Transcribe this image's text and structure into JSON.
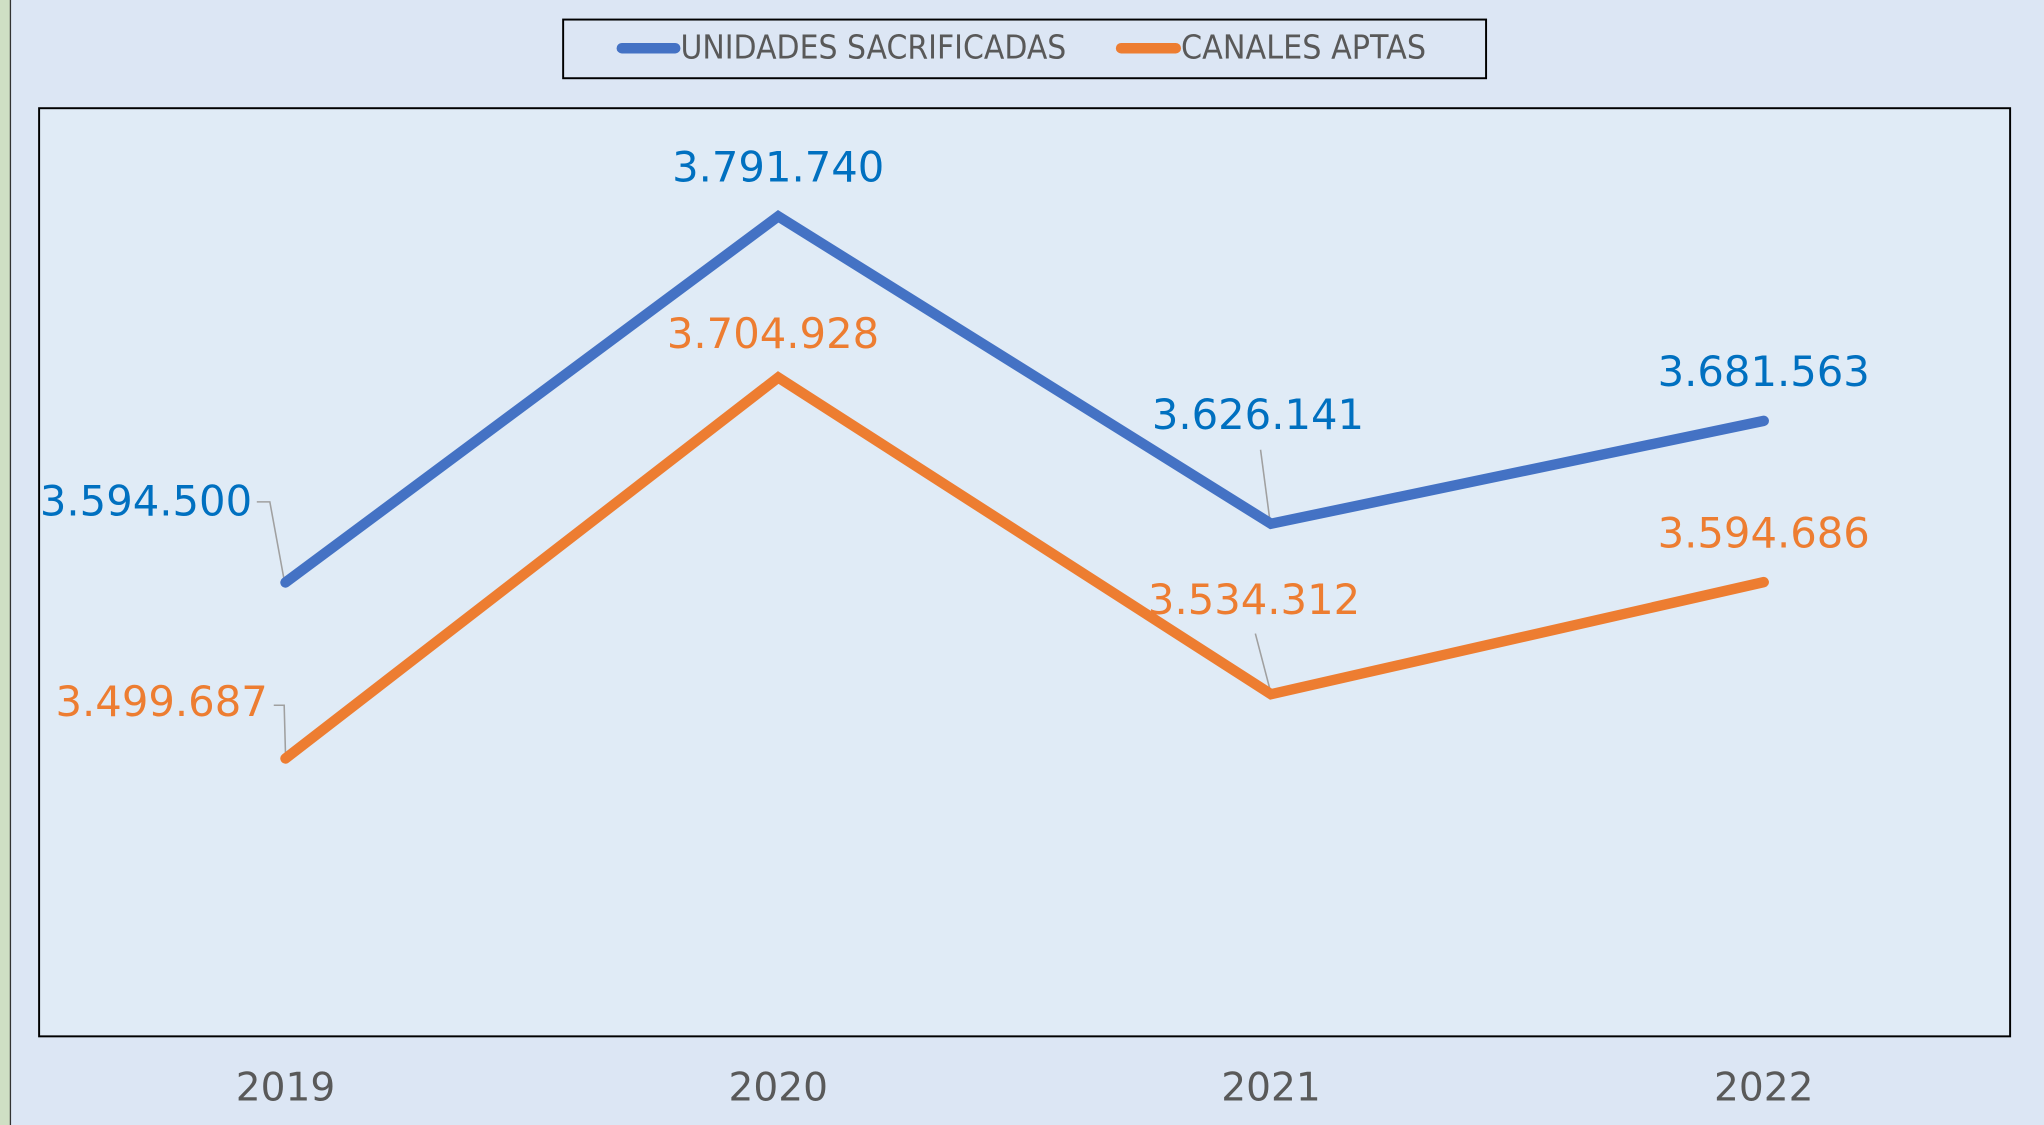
{
  "chart_data": {
    "type": "line",
    "categories": [
      "2019",
      "2020",
      "2021",
      "2022"
    ],
    "series": [
      {
        "name": "UNIDADES SACRIFICADAS",
        "color": "#4472c4",
        "label_color": "#0070c0",
        "values": [
          3594500,
          3791740,
          3626141,
          3681563
        ],
        "value_labels": [
          "3.594.500",
          "3.791.740",
          "3.626.141",
          "3.681.563"
        ]
      },
      {
        "name": "CANALES APTAS",
        "color": "#ed7d31",
        "label_color": "#ed7d31",
        "values": [
          3499687,
          3704928,
          3534312,
          3594686
        ],
        "value_labels": [
          "3.499.687",
          "3.704.928",
          "3.534.312",
          "3.594.686"
        ]
      }
    ],
    "ylim": [
      3350000,
      3850000
    ],
    "legend": "top"
  }
}
